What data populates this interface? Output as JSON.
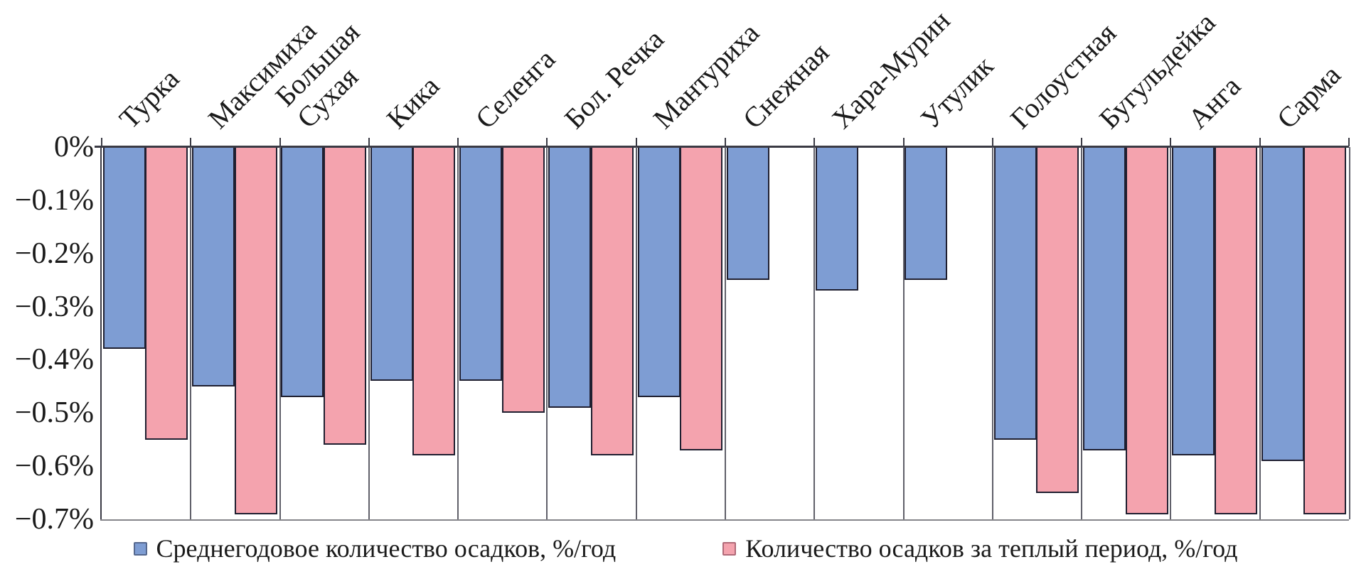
{
  "chart_data": {
    "type": "bar",
    "title": "",
    "xlabel": "",
    "ylabel": "",
    "categories": [
      "Турка",
      "Максимиха",
      "Большая\nСухая",
      "Кика",
      "Селенга",
      "Бол. Речка",
      "Мантуриха",
      "Снежная",
      "Хара-Мурин",
      "Утулик",
      "Голоустная",
      "Бугульдейка",
      "Анга",
      "Сарма"
    ],
    "series": [
      {
        "name": "Среднегодовое количество осадков, %/год",
        "color": "#7E9DD3",
        "marker_border": "#55688E",
        "values": [
          -0.38,
          -0.45,
          -0.47,
          -0.44,
          -0.44,
          -0.49,
          -0.47,
          -0.25,
          -0.27,
          -0.25,
          -0.55,
          -0.57,
          -0.58,
          -0.59
        ]
      },
      {
        "name": "Количество осадков за теплый период, %/год",
        "color": "#F4A3AE",
        "marker_border": "#B06A78",
        "values": [
          -0.55,
          -0.69,
          -0.56,
          -0.58,
          -0.5,
          -0.58,
          -0.57,
          null,
          null,
          null,
          -0.65,
          -0.69,
          -0.69,
          -0.69
        ]
      }
    ],
    "ylim": [
      -0.7,
      0
    ],
    "yticks": [
      "0%",
      "−0.1%",
      "−0.2%",
      "−0.3%",
      "−0.4%",
      "−0.5%",
      "−0.6%",
      "−0.7%"
    ],
    "grid": "vertical-category-separators",
    "legend_position": "bottom",
    "units": "%/год"
  }
}
